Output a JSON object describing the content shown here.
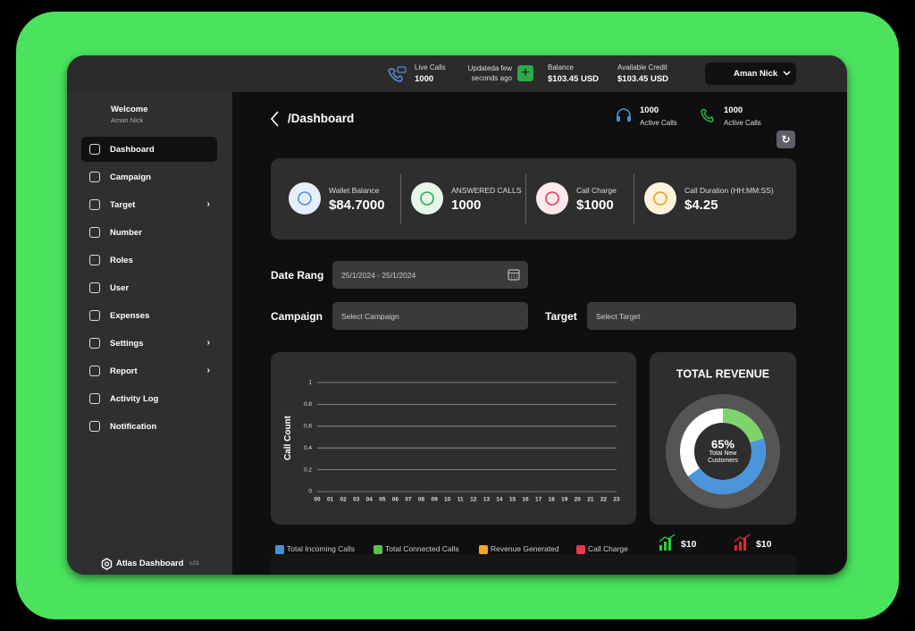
{
  "topbar": {
    "live_calls": {
      "label": "Live Calls",
      "value": "1000"
    },
    "updated": "Updateda few seconds ago",
    "balance": {
      "label": "Balance",
      "value": "$103.45 USD"
    },
    "available_credit": {
      "label": "Available Credit",
      "value": "$103.45 USD"
    },
    "user": "Aman Nick"
  },
  "sidebar": {
    "welcome": "Welcome",
    "user": "Aman Nick",
    "menu": [
      "Dashboard",
      "Campaign",
      "Target",
      "Number",
      "Roles",
      "User",
      "Expenses",
      "Settings",
      "Report",
      "Activity Log",
      "Notification"
    ],
    "footer": {
      "title": "Atlas Dashboard",
      "version": "v.01"
    }
  },
  "header": {
    "breadcrumb": "/Dashboard",
    "active_calls": [
      {
        "value": "1000",
        "label": "Active Calls"
      },
      {
        "value": "1000",
        "label": "Active Calls"
      }
    ]
  },
  "stats": [
    {
      "label": "Wallet Balance",
      "value": "$84.7000"
    },
    {
      "label": "ANSWERED CALLS",
      "value": "1000"
    },
    {
      "label": "Call Charge",
      "value": "$1000"
    },
    {
      "label": "Call Duration (HH:MM:SS)",
      "value": "$4.25"
    }
  ],
  "filters": {
    "date": {
      "label": "Date Rang",
      "value": "25/1/2024 - 25/1/2024"
    },
    "campaign": {
      "label": "Campaign",
      "placeholder": "Select Campaign"
    },
    "target": {
      "label": "Target",
      "placeholder": "Select Target"
    }
  },
  "call_chart": {
    "ylabel": "Call Count",
    "ylim": [
      0,
      1
    ],
    "yticks": [
      0,
      0.2,
      0.4,
      0.6,
      0.8,
      1
    ],
    "categories": [
      "00",
      "01",
      "02",
      "03",
      "04",
      "05",
      "06",
      "07",
      "08",
      "09",
      "10",
      "11",
      "12",
      "13",
      "14",
      "15",
      "16",
      "17",
      "18",
      "19",
      "20",
      "21",
      "22",
      "23"
    ]
  },
  "revenue": {
    "title": "TOTAL REVENUE",
    "value": 65,
    "label": "65%",
    "caption": "Total New Customers",
    "segments": [
      {
        "color": "#7fd36b",
        "value": 20
      },
      {
        "color": "#4a95dc",
        "value": 45
      }
    ]
  },
  "legend": [
    {
      "name": "Total Incoming Calls",
      "color": "#4a90d9"
    },
    {
      "name": "Total Connected Calls",
      "color": "#5cc04a"
    },
    {
      "name": "Revenue Generated",
      "color": "#f5a623"
    },
    {
      "name": "Call Charge",
      "color": "#e8384f"
    }
  ],
  "summary": [
    {
      "value": "$10",
      "color": "#2ecc40"
    },
    {
      "value": "$10",
      "color": "#e8262f"
    }
  ]
}
